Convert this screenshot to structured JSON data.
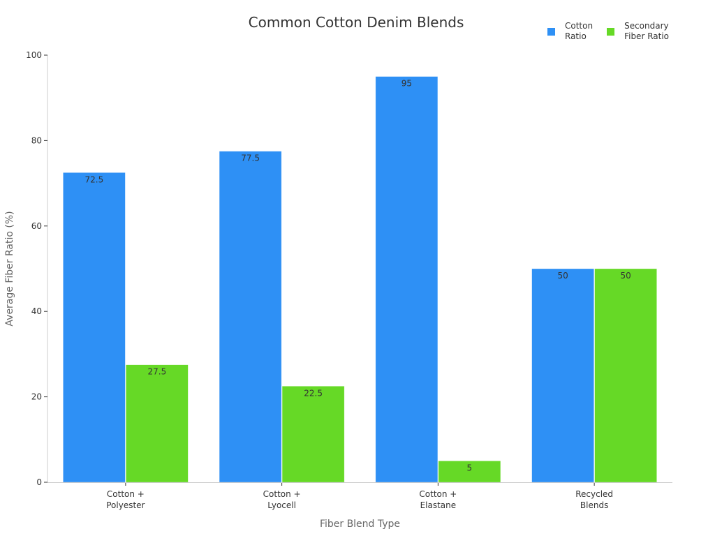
{
  "title": "Common Cotton Denim Blends",
  "legend": [
    {
      "label": "Cotton\nRatio",
      "color": "#2e90f5"
    },
    {
      "label": "Secondary\nFiber Ratio",
      "color": "#66d926"
    }
  ],
  "colors": {
    "cotton": "#2e90f5",
    "secondary": "#66d926",
    "axis": "#cccccc"
  },
  "chart_data": {
    "type": "bar",
    "title": "Common Cotton Denim Blends",
    "xlabel": "Fiber Blend Type",
    "ylabel": "Average Fiber Ratio (%)",
    "categories": [
      "Cotton + Polyester",
      "Cotton + Lyocell",
      "Cotton + Elastane",
      "Recycled Blends"
    ],
    "category_lines": [
      [
        "Cotton +",
        "Polyester"
      ],
      [
        "Cotton +",
        "Lyocell"
      ],
      [
        "Cotton +",
        "Elastane"
      ],
      [
        "Recycled",
        "Blends"
      ]
    ],
    "series": [
      {
        "name": "Cotton Ratio",
        "values": [
          72.5,
          77.5,
          95,
          50
        ],
        "color": "#2e90f5"
      },
      {
        "name": "Secondary Fiber Ratio",
        "values": [
          27.5,
          22.5,
          5,
          50
        ],
        "color": "#66d926"
      }
    ],
    "ylim": [
      0,
      100
    ],
    "yticks": [
      0,
      20,
      40,
      60,
      80,
      100
    ],
    "grid": false,
    "legend_position": "top-right",
    "data_labels": true
  }
}
